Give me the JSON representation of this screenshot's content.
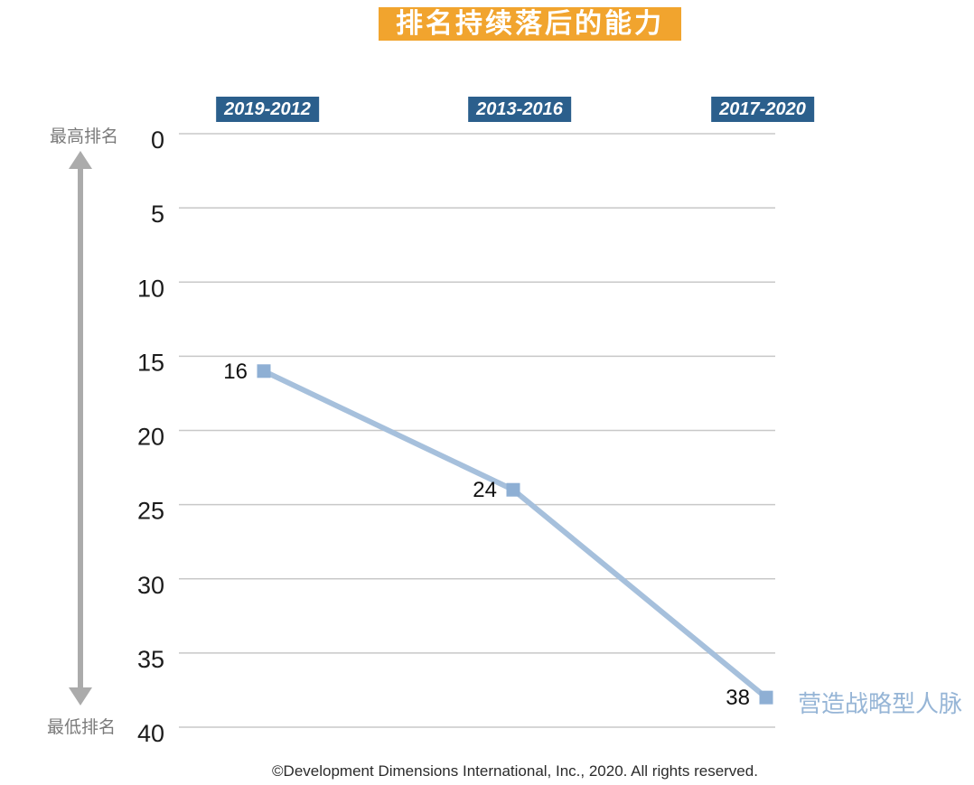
{
  "title": "排名持续落后的能力",
  "periods": [
    "2019-2012",
    "2013-2016",
    "2017-2020"
  ],
  "axis": {
    "top_label": "最高排名",
    "bottom_label": "最低排名"
  },
  "series_label": "营造战略型人脉",
  "footer": "©Development Dimensions International, Inc., 2020. All rights reserved.",
  "colors": {
    "title_bg": "#F1A42E",
    "period_bg": "#2B5F8C",
    "line": "#A6C0DC",
    "marker": "#8EAFD4",
    "legend_text": "#96B5D6",
    "gridline": "#C8C8C8",
    "arrow": "#ABABAB"
  },
  "chart_data": {
    "type": "line",
    "categories": [
      "2019-2012",
      "2013-2016",
      "2017-2020"
    ],
    "series": [
      {
        "name": "营造战略型人脉",
        "values": [
          16,
          24,
          38
        ]
      }
    ],
    "title": "排名持续落后的能力",
    "xlabel": "",
    "ylabel": "排名",
    "y_axis_top_label": "最高排名",
    "y_axis_bottom_label": "最低排名",
    "ylim": [
      0,
      40
    ],
    "yticks": [
      0,
      5,
      10,
      15,
      20,
      25,
      30,
      35,
      40
    ],
    "y_axis_inverted": true,
    "grid": true,
    "data_labels": true,
    "legend_position": "right-of-last-point"
  }
}
